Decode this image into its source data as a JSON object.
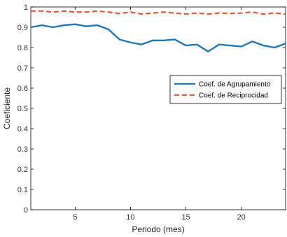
{
  "chart_data": {
    "type": "line",
    "xlabel": "Periodo (mes)",
    "ylabel": "Coeficiente",
    "xlim": [
      1,
      24
    ],
    "ylim": [
      0,
      1
    ],
    "xticks": [
      5,
      10,
      15,
      20
    ],
    "yticks": [
      0,
      0.1,
      0.2,
      0.3,
      0.4,
      0.5,
      0.6,
      0.7,
      0.8,
      0.9,
      1
    ],
    "grid": false,
    "legend_position": "center-right",
    "x": [
      1,
      2,
      3,
      4,
      5,
      6,
      7,
      8,
      9,
      10,
      11,
      12,
      13,
      14,
      15,
      16,
      17,
      18,
      19,
      20,
      21,
      22,
      23,
      24
    ],
    "series": [
      {
        "name": "Coef. de Agrupamiento",
        "color": "#1f77b4",
        "style": "solid",
        "values": [
          0.9,
          0.91,
          0.9,
          0.91,
          0.915,
          0.905,
          0.91,
          0.89,
          0.84,
          0.825,
          0.815,
          0.835,
          0.835,
          0.84,
          0.81,
          0.815,
          0.78,
          0.815,
          0.81,
          0.805,
          0.83,
          0.81,
          0.8,
          0.82
        ]
      },
      {
        "name": "Coef. de Reciprocidad",
        "color": "#e05a3a",
        "style": "dashed",
        "values": [
          0.98,
          0.98,
          0.975,
          0.98,
          0.975,
          0.975,
          0.98,
          0.975,
          0.968,
          0.975,
          0.965,
          0.97,
          0.975,
          0.97,
          0.965,
          0.97,
          0.965,
          0.97,
          0.968,
          0.97,
          0.975,
          0.965,
          0.97,
          0.965
        ]
      }
    ]
  }
}
